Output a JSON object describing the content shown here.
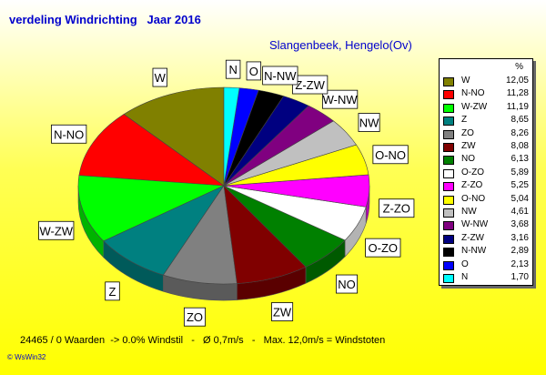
{
  "title": "verdeling Windrichting   Jaar 2016",
  "subtitle": "Slangenbeek, Hengelo(Ov)",
  "legend_unit": "%",
  "footer": "24465 / 0 Waarden  -> 0.0% Windstil   -   Ø 0,7m/s   -   Max. 12,0m/s = Windstoten",
  "credit": "© WsWin32",
  "chart_data": {
    "type": "pie",
    "title": "verdeling Windrichting   Jaar 2016",
    "subtitle": "Slangenbeek, Hengelo(Ov)",
    "unit": "%",
    "slices": [
      {
        "label": "W",
        "value": 12.05,
        "display": "12,05",
        "color": "#808000"
      },
      {
        "label": "N-NO",
        "value": 11.28,
        "display": "11,28",
        "color": "#ff0000"
      },
      {
        "label": "W-ZW",
        "value": 11.19,
        "display": "11,19",
        "color": "#00ff00"
      },
      {
        "label": "Z",
        "value": 8.65,
        "display": "8,65",
        "color": "#008080"
      },
      {
        "label": "ZO",
        "value": 8.26,
        "display": "8,26",
        "color": "#808080"
      },
      {
        "label": "ZW",
        "value": 8.08,
        "display": "8,08",
        "color": "#800000"
      },
      {
        "label": "NO",
        "value": 6.13,
        "display": "6,13",
        "color": "#008000"
      },
      {
        "label": "O-ZO",
        "value": 5.89,
        "display": "5,89",
        "color": "#ffffff"
      },
      {
        "label": "Z-ZO",
        "value": 5.25,
        "display": "5,25",
        "color": "#ff00ff"
      },
      {
        "label": "O-NO",
        "value": 5.04,
        "display": "5,04",
        "color": "#ffff00"
      },
      {
        "label": "NW",
        "value": 4.61,
        "display": "4,61",
        "color": "#c0c0c0"
      },
      {
        "label": "W-NW",
        "value": 3.68,
        "display": "3,68",
        "color": "#800080"
      },
      {
        "label": "Z-ZW",
        "value": 3.16,
        "display": "3,16",
        "color": "#000080"
      },
      {
        "label": "N-NW",
        "value": 2.89,
        "display": "2,89",
        "color": "#000000"
      },
      {
        "label": "O",
        "value": 2.13,
        "display": "2,13",
        "color": "#0000ff"
      },
      {
        "label": "N",
        "value": 1.7,
        "display": "1,70",
        "color": "#00ffff"
      }
    ]
  }
}
